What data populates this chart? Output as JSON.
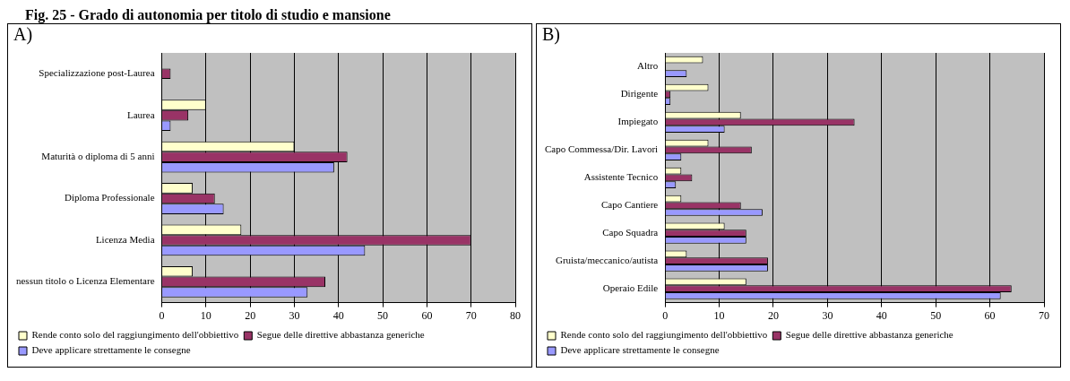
{
  "chart_data": [
    {
      "type": "bar",
      "orientation": "horizontal",
      "title": "Fig. 25 - Grado di autonomia per titolo di studio e mansione",
      "annotations": [
        "A)"
      ],
      "categories": [
        "Specializzazione post-Laurea",
        "Laurea",
        "Maturità o diploma di 5 anni",
        "Diploma Professionale",
        "Licenza Media",
        "nessun titolo o Licenza Elementare"
      ],
      "series": [
        {
          "name": "Rende conto solo del raggiungimento dell'obbiettivo",
          "color": "#ffffcc",
          "values": [
            null,
            10,
            30,
            7,
            18,
            7
          ]
        },
        {
          "name": "Segue delle direttive abbastanza generiche",
          "color": "#993366",
          "values": [
            2,
            6,
            42,
            12,
            70,
            37
          ]
        },
        {
          "name": "Deve applicare strettamente le consegne",
          "color": "#9999ff",
          "values": [
            null,
            2,
            39,
            14,
            46,
            33
          ]
        }
      ],
      "xlim": [
        0,
        80
      ],
      "xticks": [
        0,
        10,
        20,
        30,
        40,
        50,
        60,
        70,
        80
      ],
      "grid": "x",
      "legend": "bottom"
    },
    {
      "type": "bar",
      "orientation": "horizontal",
      "annotations": [
        "B)"
      ],
      "categories": [
        "Altro",
        "Dirigente",
        "Impiegato",
        "Capo Commessa/Dir. Lavori",
        "Assistente Tecnico",
        "Capo Cantiere",
        "Capo Squadra",
        "Gruista/meccanico/autista",
        "Operaio Edile"
      ],
      "series": [
        {
          "name": "Rende conto solo del raggiungimento dell'obbiettivo",
          "color": "#ffffcc",
          "values": [
            7,
            8,
            14,
            8,
            3,
            3,
            11,
            4,
            15
          ]
        },
        {
          "name": "Segue delle direttive abbastanza generiche",
          "color": "#993366",
          "values": [
            null,
            1,
            35,
            16,
            5,
            14,
            15,
            19,
            64
          ]
        },
        {
          "name": "Deve applicare strettamente le consegne",
          "color": "#9999ff",
          "values": [
            4,
            1,
            11,
            3,
            2,
            18,
            15,
            19,
            62
          ]
        }
      ],
      "xlim": [
        0,
        70
      ],
      "xticks": [
        0,
        10,
        20,
        30,
        40,
        50,
        60,
        70
      ],
      "grid": "x",
      "legend": "bottom"
    }
  ]
}
